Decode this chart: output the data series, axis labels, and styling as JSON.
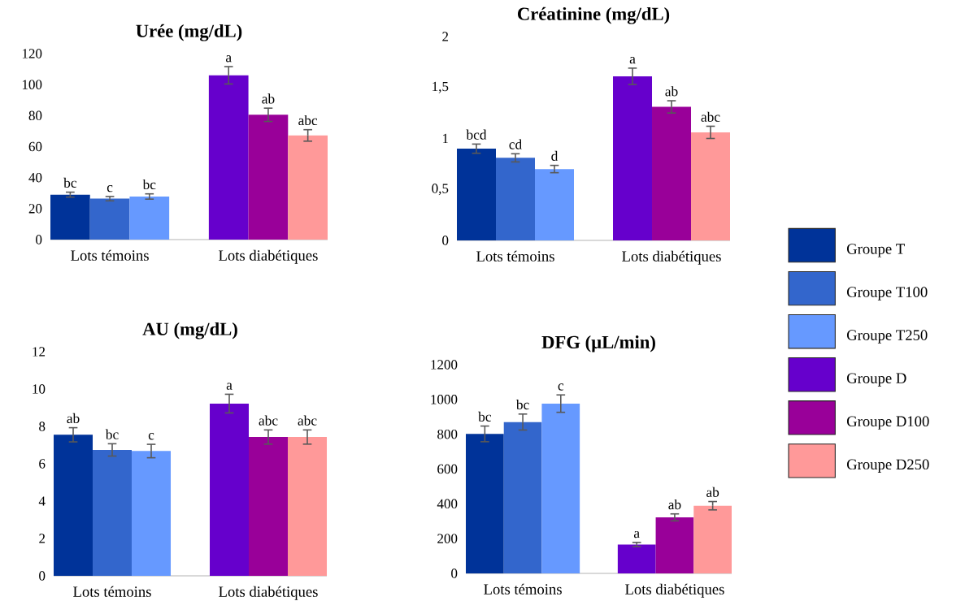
{
  "chart_data": [
    {
      "type": "bar",
      "title": "**Urée (mg/dL)**",
      "categories": [
        "Lots témoins",
        "Lots diabétiques"
      ],
      "ylim": [
        0,
        120
      ],
      "yticks": [
        0,
        20,
        40,
        60,
        80,
        100,
        120
      ],
      "series": [
        {
          "color": "#003399",
          "values": [
            29,
            null
          ],
          "errors": [
            1.6,
            null
          ]
        },
        {
          "color": "#3366cc",
          "values": [
            26.4,
            null
          ],
          "errors": [
            1.4,
            null
          ]
        },
        {
          "color": "#6699ff",
          "values": [
            27.8,
            null
          ],
          "errors": [
            1.7,
            null
          ]
        },
        {
          "color": "#6600cc",
          "values": [
            null,
            106
          ],
          "errors": [
            null,
            5.6
          ]
        },
        {
          "color": "#990099",
          "values": [
            null,
            80.5
          ],
          "errors": [
            null,
            4.3
          ]
        },
        {
          "color": "#ff9999",
          "values": [
            null,
            67.2
          ],
          "errors": [
            null,
            3.7
          ]
        }
      ],
      "annotations": [
        "bc",
        "c",
        "bc",
        "a",
        "ab",
        "abc"
      ]
    },
    {
      "type": "bar",
      "title": "**Créatinine (mg/dL)**",
      "categories": [
        "Lots témoins",
        "Lots diabétiques"
      ],
      "ylim": [
        0,
        2
      ],
      "yticks": [
        0,
        {
          "value": 0.5,
          "label": "0,5"
        },
        1,
        {
          "value": 1.5,
          "label": "1,5"
        },
        2
      ],
      "legend": "right",
      "series": [
        {
          "name": "Groupe T",
          "color": "#003399",
          "values": [
            0.9,
            null
          ],
          "errors": [
            0.045,
            null
          ]
        },
        {
          "name": "Groupe T100",
          "color": "#3366cc",
          "values": [
            0.81,
            null
          ],
          "errors": [
            0.04,
            null
          ]
        },
        {
          "name": "Groupe T250",
          "color": "#6699ff",
          "values": [
            0.7,
            null
          ],
          "errors": [
            0.036,
            null
          ]
        },
        {
          "name": "Groupe D",
          "color": "#6600cc",
          "values": [
            null,
            1.61
          ],
          "errors": [
            null,
            0.08
          ]
        },
        {
          "name": "Groupe D100",
          "color": "#990099",
          "values": [
            null,
            1.31
          ],
          "errors": [
            null,
            0.06
          ]
        },
        {
          "name": "Groupe D250",
          "color": "#ff9999",
          "values": [
            null,
            1.06
          ],
          "errors": [
            null,
            0.06
          ]
        }
      ],
      "annotations": [
        "bcd",
        "cd",
        "d",
        "a",
        "ab",
        "abc"
      ]
    },
    {
      "type": "bar",
      "title": "**AU (mg/dL)**",
      "categories": [
        "Lots témoins",
        "Lots diabétiques"
      ],
      "ylim": [
        0,
        12
      ],
      "yticks": [
        0,
        2,
        4,
        6,
        8,
        10,
        12
      ],
      "series": [
        {
          "color": "#003399",
          "values": [
            7.55,
            null
          ],
          "errors": [
            0.38,
            null
          ]
        },
        {
          "color": "#3366cc",
          "values": [
            6.74,
            null
          ],
          "errors": [
            0.33,
            null
          ]
        },
        {
          "color": "#6699ff",
          "values": [
            6.68,
            null
          ],
          "errors": [
            0.36,
            null
          ]
        },
        {
          "color": "#6600cc",
          "values": [
            null,
            9.22
          ],
          "errors": [
            null,
            0.5
          ]
        },
        {
          "color": "#990099",
          "values": [
            null,
            7.43
          ],
          "errors": [
            null,
            0.38
          ]
        },
        {
          "color": "#ff9999",
          "values": [
            null,
            7.43
          ],
          "errors": [
            null,
            0.38
          ]
        }
      ],
      "annotations": [
        "ab",
        "bc",
        "c",
        "a",
        "abc",
        "abc"
      ]
    },
    {
      "type": "bar",
      "title": "**DFG (µL/min)**",
      "categories": [
        "Lots témoins",
        "Lots diabétiques"
      ],
      "ylim": [
        0,
        1200
      ],
      "yticks": [
        0,
        200,
        400,
        600,
        800,
        1000,
        1200
      ],
      "series": [
        {
          "color": "#003399",
          "values": [
            802,
            null
          ],
          "errors": [
            45,
            null
          ]
        },
        {
          "color": "#3366cc",
          "values": [
            870,
            null
          ],
          "errors": [
            46,
            null
          ]
        },
        {
          "color": "#6699ff",
          "values": [
            976,
            null
          ],
          "errors": [
            50,
            null
          ]
        },
        {
          "color": "#6600cc",
          "values": [
            null,
            166
          ],
          "errors": [
            null,
            12
          ]
        },
        {
          "color": "#990099",
          "values": [
            null,
            322
          ],
          "errors": [
            null,
            20
          ]
        },
        {
          "color": "#ff9999",
          "values": [
            null,
            389
          ],
          "errors": [
            null,
            24
          ]
        }
      ],
      "annotations": [
        "bc",
        "bc",
        "c",
        "a",
        "ab",
        "ab"
      ]
    }
  ]
}
